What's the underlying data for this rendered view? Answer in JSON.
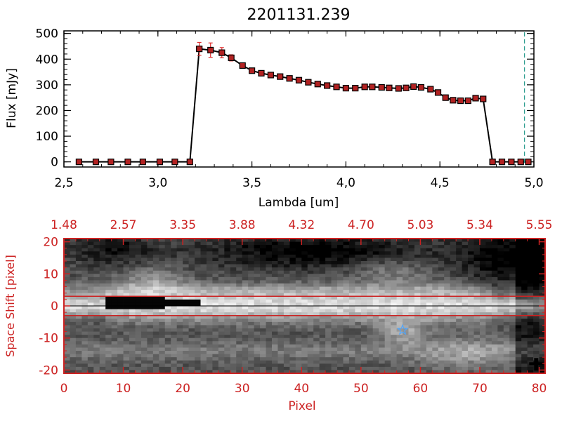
{
  "colors": {
    "black": "#000000",
    "red_axis": "#cc2222",
    "marker_fill": "#b22222",
    "errorbar": "#e03030",
    "cutoff_line": "#2a9d8f",
    "star": "#4da6ff"
  },
  "chart_data": [
    {
      "type": "line",
      "title": "2201131.239",
      "xlabel": "Lambda [um]",
      "ylabel": "Flux [mJy]",
      "xlim": [
        2.5,
        5.0
      ],
      "ylim": [
        -20,
        510
      ],
      "xticks": [
        2.5,
        3.0,
        3.5,
        4.0,
        4.5,
        5.0
      ],
      "xtick_labels": [
        "2,5",
        "3,0",
        "3,5",
        "4,0",
        "4,5",
        "5,0"
      ],
      "yticks": [
        0,
        100,
        200,
        300,
        400,
        500
      ],
      "ytick_labels": [
        "0",
        "100",
        "200",
        "300",
        "400",
        "500"
      ],
      "cutoff_x": 4.95,
      "series": [
        {
          "x": [
            2.58,
            2.67,
            2.75,
            2.84,
            2.92,
            3.01,
            3.09,
            3.17,
            3.22,
            3.28,
            3.34,
            3.39,
            3.45,
            3.5,
            3.55,
            3.6,
            3.65,
            3.7,
            3.75,
            3.8,
            3.85,
            3.9,
            3.95,
            4.0,
            4.05,
            4.1,
            4.14,
            4.19,
            4.23,
            4.28,
            4.32,
            4.36,
            4.4,
            4.45,
            4.49,
            4.53,
            4.57,
            4.61,
            4.65,
            4.69,
            4.73,
            4.78,
            4.83,
            4.88,
            4.93,
            4.97
          ],
          "y": [
            0,
            0,
            0,
            0,
            0,
            0,
            0,
            0,
            440,
            435,
            425,
            405,
            375,
            355,
            345,
            338,
            332,
            325,
            318,
            310,
            303,
            297,
            292,
            287,
            287,
            292,
            292,
            290,
            288,
            286,
            288,
            293,
            290,
            283,
            270,
            250,
            240,
            238,
            238,
            248,
            245,
            0,
            0,
            0,
            0,
            0
          ],
          "err": [
            0,
            0,
            0,
            0,
            0,
            0,
            0,
            0,
            25,
            28,
            20,
            12,
            5,
            5,
            4,
            4,
            4,
            3,
            3,
            3,
            3,
            3,
            3,
            3,
            3,
            3,
            3,
            3,
            3,
            3,
            3,
            3,
            3,
            3,
            3,
            3,
            3,
            3,
            3,
            3,
            3,
            0,
            0,
            0,
            0,
            0
          ]
        }
      ]
    },
    {
      "type": "heatmap",
      "xlabel": "Pixel",
      "ylabel": "Space Shift [pixel]",
      "xlim": [
        0,
        81
      ],
      "ylim": [
        -21,
        21
      ],
      "xticks": [
        0,
        10,
        20,
        30,
        40,
        50,
        60,
        70,
        80
      ],
      "xtick_labels": [
        "0",
        "10",
        "20",
        "30",
        "40",
        "50",
        "60",
        "70",
        "80"
      ],
      "yticks": [
        -20,
        -10,
        0,
        10,
        20
      ],
      "ytick_labels": [
        "-20",
        "-10",
        "0",
        "10",
        "20"
      ],
      "top_axis_labels": [
        "1.48",
        "2.57",
        "3.35",
        "3.88",
        "4.32",
        "4.70",
        "5.03",
        "5.34",
        "5.55"
      ],
      "extraction_lines_y": [
        3,
        -3
      ],
      "star_marker": {
        "x": 57,
        "y": -7.5
      },
      "cross_marker": {
        "x": 79.5,
        "y": -18
      },
      "colormap": "grayscale"
    }
  ]
}
